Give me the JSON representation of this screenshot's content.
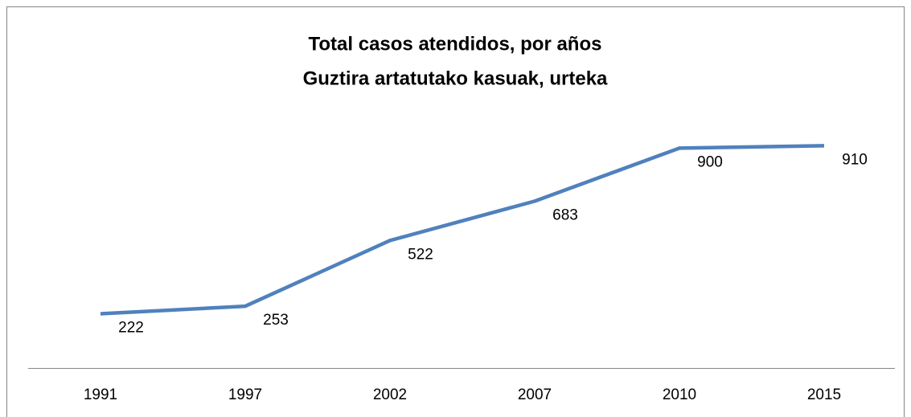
{
  "chart_data": {
    "type": "line",
    "title": "Total casos atendidos, por años",
    "subtitle": "Guztira artatutako kasuak, urteka",
    "categories": [
      "1991",
      "1997",
      "2002",
      "2007",
      "2010",
      "2015"
    ],
    "series": [
      {
        "name": "Total casos",
        "color": "#4f81bd",
        "values": [
          222,
          253,
          522,
          683,
          900,
          910
        ]
      }
    ],
    "ylim": [
      0,
      1000
    ],
    "subtitle_color": "#ff0000"
  }
}
